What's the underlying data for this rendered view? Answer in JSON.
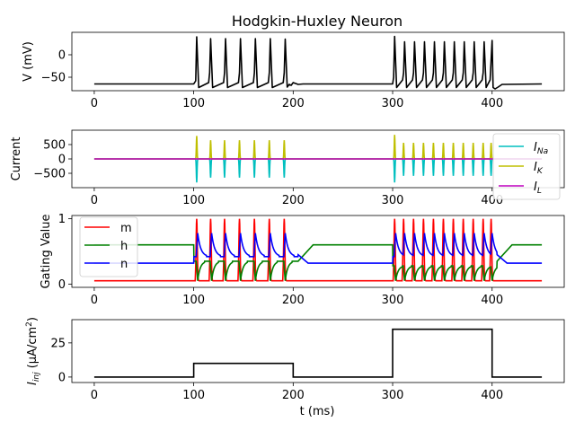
{
  "chart_data": [
    {
      "type": "line",
      "title": "Hodgkin-Huxley Neuron",
      "xlabel": "",
      "ylabel": "V (mV)",
      "xlim": [
        -22.5,
        472.5
      ],
      "ylim": [
        -80,
        50
      ],
      "xticks": [
        0,
        100,
        200,
        300,
        400
      ],
      "xtick_labels": [
        "0",
        "100",
        "200",
        "300",
        "400"
      ],
      "yticks": [
        0,
        -50
      ],
      "ytick_labels": [
        "0",
        "−50"
      ],
      "legend": null,
      "series": [
        {
          "color": "#000000",
          "x": [
            0,
            100,
            102,
            103,
            105,
            115,
            116,
            117,
            119,
            130,
            131,
            132,
            134,
            145,
            146,
            147,
            149,
            160,
            161,
            162,
            164,
            175,
            176,
            177,
            179,
            190,
            191,
            192,
            194,
            196,
            198,
            200,
            205,
            210,
            300,
            301,
            302,
            304,
            310,
            311,
            312,
            314,
            320,
            321,
            322,
            324,
            330,
            331,
            332,
            334,
            340,
            341,
            342,
            344,
            350,
            351,
            352,
            354,
            360,
            361,
            362,
            364,
            370,
            371,
            372,
            374,
            380,
            381,
            382,
            384,
            390,
            391,
            392,
            394,
            398,
            400,
            401,
            403,
            406,
            410,
            450
          ],
          "y": [
            -65,
            -65,
            -58,
            40,
            -73,
            -62,
            -40,
            36,
            -73,
            -62,
            -40,
            36,
            -73,
            -62,
            -40,
            36,
            -73,
            -62,
            -40,
            36,
            -73,
            -62,
            -40,
            36,
            -73,
            -62,
            -40,
            35,
            -72,
            -66,
            -68,
            -62,
            -66,
            -65,
            -65,
            -50,
            41,
            -73,
            -56,
            -40,
            29,
            -73,
            -56,
            -40,
            29,
            -73,
            -56,
            -40,
            29,
            -73,
            -56,
            -40,
            29,
            -73,
            -56,
            -40,
            29,
            -73,
            -56,
            -40,
            29,
            -73,
            -56,
            -40,
            29,
            -73,
            -56,
            -40,
            29,
            -73,
            -56,
            -40,
            29,
            -73,
            -56,
            32,
            -73,
            -76,
            -72,
            -66,
            -65
          ]
        }
      ]
    },
    {
      "type": "line",
      "title": "",
      "xlabel": "",
      "ylabel": "Current",
      "xlim": [
        -22.5,
        472.5
      ],
      "ylim": [
        -1000,
        1000
      ],
      "xticks": [
        0,
        100,
        200,
        300,
        400
      ],
      "xtick_labels": [
        "0",
        "100",
        "200",
        "300",
        "400"
      ],
      "yticks": [
        500,
        0,
        -500
      ],
      "ytick_labels": [
        "500",
        "0",
        "−500"
      ],
      "legend": "right",
      "spikes_ms": [
        103,
        117,
        131,
        146,
        161,
        176,
        191,
        302,
        311,
        321,
        331,
        341,
        351,
        361,
        371,
        381,
        391,
        399
      ],
      "series": [
        {
          "name": "Na",
          "label_base": "I",
          "label_sub": "Na",
          "color": "#00bfbf",
          "peaks": [
            -820,
            -650,
            -650,
            -650,
            -650,
            -650,
            -650,
            -820,
            -590,
            -590,
            -590,
            -590,
            -590,
            -590,
            -590,
            -590,
            -590,
            -590
          ]
        },
        {
          "name": "K",
          "label_base": "I",
          "label_sub": "K",
          "color": "#bfbf00",
          "peaks": [
            800,
            650,
            650,
            650,
            650,
            650,
            650,
            840,
            560,
            560,
            560,
            560,
            560,
            560,
            560,
            560,
            560,
            560
          ]
        },
        {
          "name": "L",
          "label_base": "I",
          "label_sub": "L",
          "color": "#bf00bf",
          "peaks": []
        }
      ]
    },
    {
      "type": "line",
      "title": "",
      "xlabel": "",
      "ylabel": "Gating Value",
      "xlim": [
        -22.5,
        472.5
      ],
      "ylim": [
        -0.05,
        1.05
      ],
      "xticks": [
        0,
        100,
        200,
        300,
        400
      ],
      "xtick_labels": [
        "0",
        "100",
        "200",
        "300",
        "400"
      ],
      "yticks": [
        1,
        0
      ],
      "ytick_labels": [
        "1",
        "0"
      ],
      "legend": "upper left",
      "series": [
        {
          "name": "m",
          "color": "#ff0000",
          "rest": 0.05,
          "spike": 1.0
        },
        {
          "name": "h",
          "color": "#008000",
          "rest": 0.6,
          "trough": 0.05
        },
        {
          "name": "n",
          "color": "#0000ff",
          "rest": 0.32,
          "spike": 0.78
        }
      ]
    },
    {
      "type": "line",
      "title": "",
      "xlabel": "t (ms)",
      "ylabel_base": "I",
      "ylabel_sub": "inj",
      "ylabel_rest": " (μA/cm",
      "ylabel_sup": "2",
      "ylabel_end": ")",
      "xlim": [
        -22.5,
        472.5
      ],
      "ylim": [
        -4,
        42
      ],
      "xticks": [
        0,
        100,
        200,
        300,
        400
      ],
      "xtick_labels": [
        "0",
        "100",
        "200",
        "300",
        "400"
      ],
      "yticks": [
        25,
        0
      ],
      "ytick_labels": [
        "25",
        "0"
      ],
      "legend": null,
      "series": [
        {
          "color": "#000000",
          "x": [
            0,
            100,
            100,
            200,
            200,
            300,
            300,
            400,
            400,
            450
          ],
          "y": [
            0,
            0,
            10,
            10,
            0,
            0,
            35,
            35,
            0,
            0
          ]
        }
      ]
    }
  ]
}
